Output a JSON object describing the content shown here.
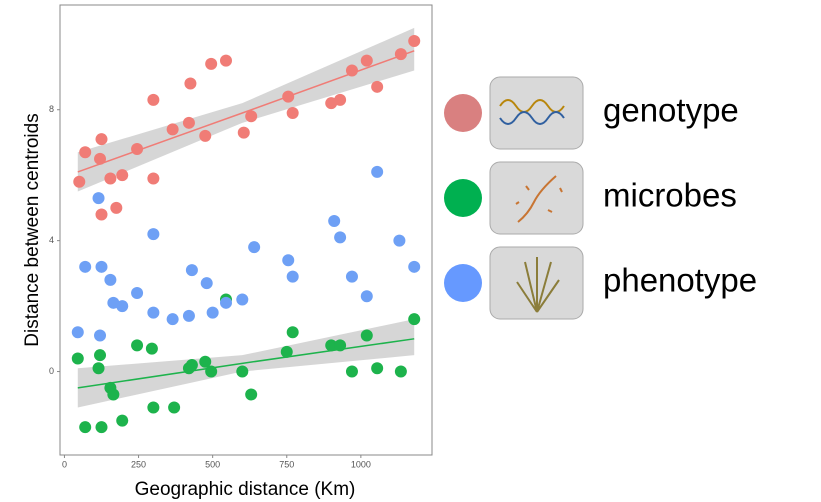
{
  "chart_data": {
    "type": "scatter",
    "xlabel": "Geographic distance (Km)",
    "ylabel": "Distance between centroids",
    "xlim": [
      -15,
      1240
    ],
    "ylim": [
      -2.55,
      11.2
    ],
    "xticks": [
      0,
      250,
      500,
      750,
      1000
    ],
    "yticks": [
      0,
      4,
      8
    ],
    "series": [
      {
        "name": "genotype",
        "color": "#f07c76",
        "legend_color": "#d98080",
        "x": [
          50,
          70,
          120,
          125,
          125,
          155,
          175,
          195,
          245,
          300,
          300,
          365,
          420,
          425,
          475,
          495,
          545,
          605,
          630,
          755,
          770,
          900,
          930,
          970,
          1020,
          1055,
          1135,
          1180
        ],
        "values": [
          5.8,
          6.7,
          6.5,
          7.1,
          4.8,
          5.9,
          5.0,
          6.0,
          6.8,
          8.3,
          5.9,
          7.4,
          7.6,
          8.8,
          7.2,
          9.4,
          9.5,
          7.3,
          7.8,
          8.4,
          7.9,
          8.2,
          8.3,
          9.2,
          9.5,
          8.7,
          9.7,
          10.1
        ],
        "fit": {
          "x": [
            45,
            600,
            1180
          ],
          "values": [
            6.1,
            7.9,
            9.8
          ],
          "lower": [
            5.5,
            7.6,
            9.2
          ],
          "upper": [
            6.7,
            8.2,
            10.5
          ]
        }
      },
      {
        "name": "microbes",
        "color": "#1db34c",
        "legend_color": "#00b050",
        "x": [
          45,
          70,
          115,
          120,
          125,
          155,
          165,
          195,
          245,
          295,
          300,
          370,
          420,
          430,
          475,
          495,
          545,
          600,
          630,
          750,
          770,
          900,
          930,
          970,
          1020,
          1055,
          1135,
          1180
        ],
        "values": [
          0.4,
          -1.7,
          0.1,
          0.5,
          -1.7,
          -0.5,
          -0.7,
          -1.5,
          0.8,
          0.7,
          -1.1,
          -1.1,
          0.1,
          0.2,
          0.3,
          0,
          2.2,
          0,
          -0.7,
          0.6,
          1.2,
          0.8,
          0.8,
          0,
          1.1,
          0.1,
          0,
          1.6
        ],
        "fit": {
          "x": [
            45,
            600,
            1180
          ],
          "values": [
            -0.5,
            0.25,
            1.0
          ],
          "lower": [
            -1.1,
            0.0,
            0.5
          ],
          "upper": [
            0.1,
            0.5,
            1.6
          ]
        }
      },
      {
        "name": "phenotype",
        "color": "#6ea0f5",
        "legend_color": "#6699ff",
        "x": [
          45,
          70,
          115,
          120,
          125,
          155,
          165,
          195,
          245,
          300,
          300,
          365,
          420,
          430,
          480,
          500,
          545,
          600,
          640,
          755,
          770,
          910,
          930,
          970,
          1020,
          1055,
          1130,
          1180
        ],
        "values": [
          1.2,
          3.2,
          5.3,
          1.1,
          3.2,
          2.8,
          2.1,
          2.0,
          2.4,
          4.2,
          1.8,
          1.6,
          1.7,
          3.1,
          2.7,
          1.8,
          2.1,
          2.2,
          3.8,
          3.4,
          2.9,
          4.6,
          4.1,
          2.9,
          2.3,
          6.1,
          4.0,
          3.2
        ]
      }
    ]
  }
}
